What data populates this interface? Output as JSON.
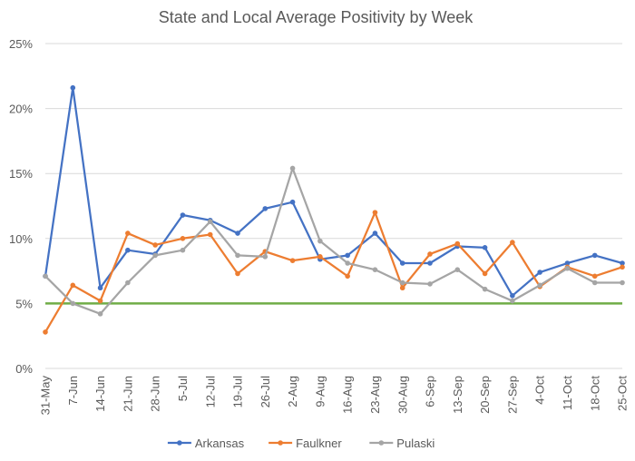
{
  "chart_data": {
    "type": "line",
    "title": "State and Local Average Positivity by Week",
    "xlabel": "",
    "ylabel": "",
    "ylim": [
      0,
      25
    ],
    "yticks": [
      "0%",
      "5%",
      "10%",
      "15%",
      "20%",
      "25%"
    ],
    "ytick_values": [
      0,
      5,
      10,
      15,
      20,
      25
    ],
    "grid": "horizontal",
    "legend_position": "bottom",
    "categories": [
      "31-May",
      "7-Jun",
      "14-Jun",
      "21-Jun",
      "28-Jun",
      "5-Jul",
      "12-Jul",
      "19-Jul",
      "26-Jul",
      "2-Aug",
      "9-Aug",
      "16-Aug",
      "23-Aug",
      "30-Aug",
      "6-Sep",
      "13-Sep",
      "20-Sep",
      "27-Sep",
      "4-Oct",
      "11-Oct",
      "18-Oct",
      "25-Oct"
    ],
    "series": [
      {
        "name": "Arkansas",
        "color": "#4472C4",
        "values": [
          7.1,
          21.6,
          6.2,
          9.1,
          8.8,
          11.8,
          11.4,
          10.4,
          12.3,
          12.8,
          8.4,
          8.7,
          10.4,
          8.1,
          8.1,
          9.4,
          9.3,
          5.6,
          7.4,
          8.1,
          8.7,
          8.1
        ]
      },
      {
        "name": "Faulkner",
        "color": "#ED7D31",
        "values": [
          2.8,
          6.4,
          5.2,
          10.4,
          9.5,
          10.0,
          10.3,
          7.3,
          9.0,
          8.3,
          8.6,
          7.1,
          12.0,
          6.2,
          8.8,
          9.6,
          7.3,
          9.7,
          6.3,
          7.8,
          7.1,
          7.8
        ]
      },
      {
        "name": "Pulaski",
        "color": "#A5A5A5",
        "values": [
          7.1,
          5.0,
          4.2,
          6.6,
          8.7,
          9.1,
          11.3,
          8.7,
          8.6,
          15.4,
          9.8,
          8.1,
          7.6,
          6.6,
          6.5,
          7.6,
          6.1,
          5.2,
          6.4,
          7.7,
          6.6,
          6.6
        ]
      }
    ],
    "reference_line": {
      "value": 5,
      "color": "#70AD47"
    }
  }
}
